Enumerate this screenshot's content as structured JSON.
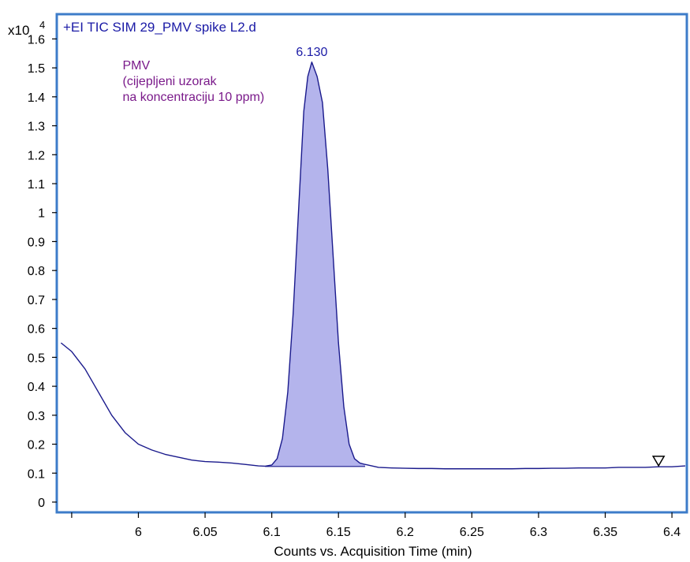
{
  "chart_data": {
    "type": "line",
    "title": "+EI TIC SIM 29_PMV spike L2.d",
    "xlabel": "Counts vs. Acquisition Time (min)",
    "ylabel": "",
    "y_multiplier_label": "x10",
    "y_multiplier_exp": "4",
    "xlim": [
      5.94,
      6.41
    ],
    "ylim": [
      -0.03,
      1.68
    ],
    "x_ticks": [
      6,
      6.05,
      6.1,
      6.15,
      6.2,
      6.25,
      6.3,
      6.35,
      6.4
    ],
    "x_tick_labels": [
      "6",
      "6.05",
      "6.1",
      "6.15",
      "6.2",
      "6.25",
      "6.3",
      "6.35",
      "6.4"
    ],
    "y_ticks": [
      0,
      0.1,
      0.2,
      0.3,
      0.4,
      0.5,
      0.6,
      0.7,
      0.8,
      0.9,
      1,
      1.1,
      1.2,
      1.3,
      1.4,
      1.5,
      1.6
    ],
    "y_tick_labels": [
      "0",
      "0.1",
      "0.2",
      "0.3",
      "0.4",
      "0.5",
      "0.6",
      "0.7",
      "0.8",
      "0.9",
      "1",
      "1.1",
      "1.2",
      "1.3",
      "1.4",
      "1.5",
      "1.6"
    ],
    "grid": false,
    "series": [
      {
        "values_x": [
          5.942,
          5.95,
          5.96,
          5.97,
          5.98,
          5.99,
          6.0,
          6.01,
          6.02,
          6.03,
          6.04,
          6.05,
          6.06,
          6.07,
          6.08,
          6.09,
          6.095,
          6.1,
          6.104,
          6.108,
          6.112,
          6.116,
          6.12,
          6.124,
          6.127,
          6.13,
          6.134,
          6.138,
          6.142,
          6.146,
          6.15,
          6.154,
          6.158,
          6.162,
          6.166,
          6.17,
          6.18,
          6.19,
          6.2,
          6.21,
          6.22,
          6.23,
          6.24,
          6.25,
          6.26,
          6.27,
          6.28,
          6.29,
          6.3,
          6.31,
          6.32,
          6.33,
          6.34,
          6.35,
          6.36,
          6.37,
          6.38,
          6.39,
          6.4,
          6.41
        ],
        "values_y": [
          0.55,
          0.52,
          0.46,
          0.38,
          0.3,
          0.24,
          0.2,
          0.18,
          0.165,
          0.155,
          0.145,
          0.14,
          0.138,
          0.135,
          0.13,
          0.125,
          0.124,
          0.128,
          0.15,
          0.22,
          0.38,
          0.65,
          1.0,
          1.35,
          1.47,
          1.52,
          1.47,
          1.38,
          1.15,
          0.85,
          0.55,
          0.33,
          0.2,
          0.15,
          0.135,
          0.13,
          0.12,
          0.118,
          0.117,
          0.116,
          0.116,
          0.115,
          0.115,
          0.115,
          0.115,
          0.115,
          0.115,
          0.116,
          0.116,
          0.117,
          0.117,
          0.118,
          0.118,
          0.118,
          0.12,
          0.12,
          0.12,
          0.122,
          0.122,
          0.125
        ]
      }
    ],
    "peak": {
      "label": "6.130",
      "x": 6.13,
      "y": 1.52,
      "area_x_range": [
        6.095,
        6.17
      ],
      "baseline_y": 0.123
    },
    "marker": {
      "x": 6.39,
      "y": 0.12,
      "shape": "triangle-down"
    },
    "annotation": {
      "lines": [
        "PMV",
        "(cijepljeni uzorak",
        "na koncentraciju 10 ppm)"
      ],
      "anchor_x": 6.0
    },
    "colors": {
      "frame": "#3d7cc9",
      "line": "#1a1a8c",
      "fill": "#b4b4ec",
      "title": "#1a1aa6",
      "peak_label": "#1a1aa6",
      "annotation": "#7a1a8a",
      "axis": "#000000"
    }
  }
}
